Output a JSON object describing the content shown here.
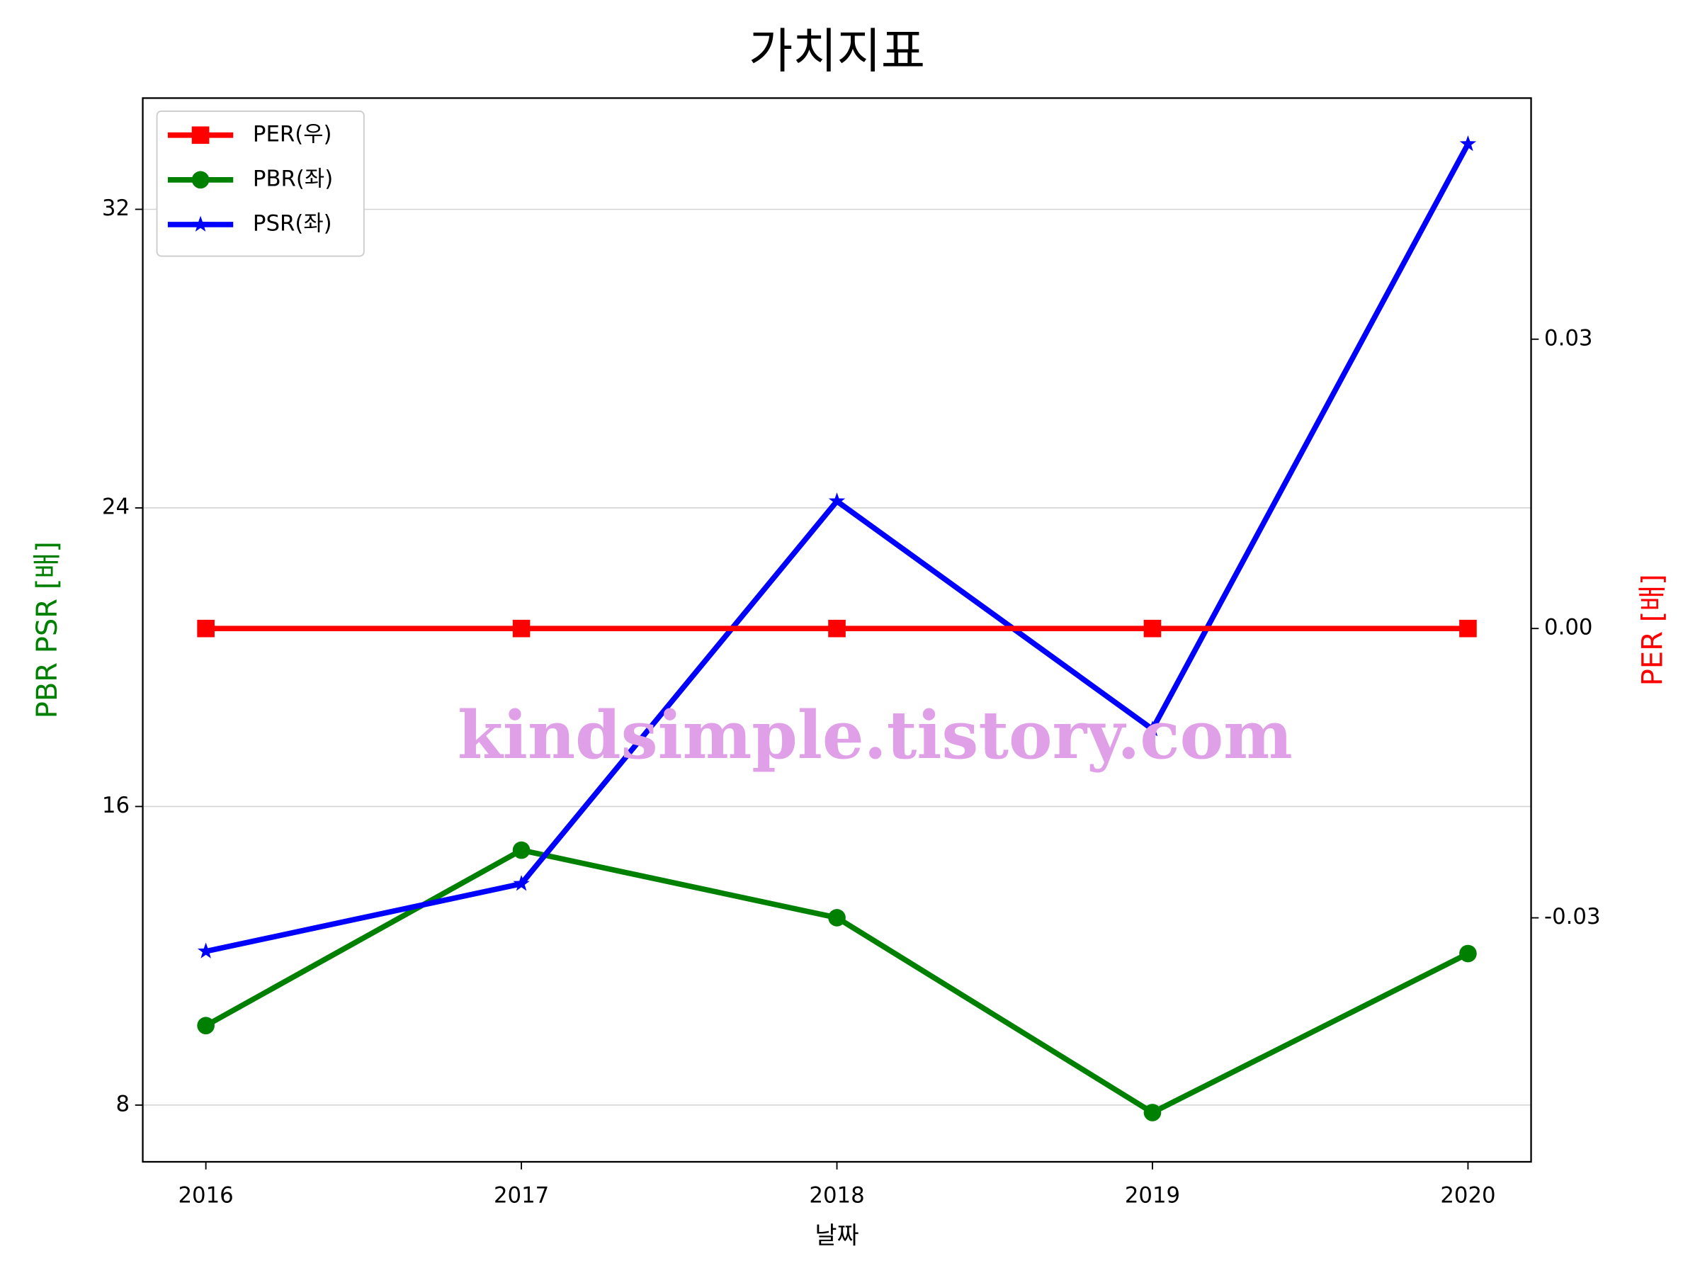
{
  "chart_data": {
    "type": "line",
    "title": "가치지표",
    "xlabel": "날짜",
    "ylabel": "PBR PSR [배]",
    "y2label": "PER [배]",
    "annotation": "kindsimple.tistory.com",
    "x": [
      2016,
      2017,
      2018,
      2019,
      2020
    ],
    "xlim": [
      2015.8,
      2020.2
    ],
    "xticks": [
      2016,
      2017,
      2018,
      2019,
      2020
    ],
    "ylim": [
      6.48,
      34.98
    ],
    "yticks": [
      8,
      16,
      24,
      32
    ],
    "y2lim": [
      -0.0553,
      0.055
    ],
    "y2ticks": [
      -0.03,
      {
        "value": 0,
        "label": "0.00"
      },
      0.03
    ],
    "grid": true,
    "legend": "upper left",
    "series": [
      {
        "name": "PER(우)",
        "color": "#ff0000",
        "marker": "square",
        "axis": "y2",
        "values": [
          0,
          0,
          0,
          0,
          0
        ]
      },
      {
        "name": "PBR(좌)",
        "color": "#008000",
        "marker": "circle",
        "values": [
          10.13,
          14.83,
          13.02,
          7.8,
          12.06
        ]
      },
      {
        "name": "PSR(좌)",
        "color": "#0000ff",
        "marker": "star",
        "values": [
          12.12,
          13.93,
          24.18,
          18.07,
          33.75
        ]
      }
    ]
  }
}
